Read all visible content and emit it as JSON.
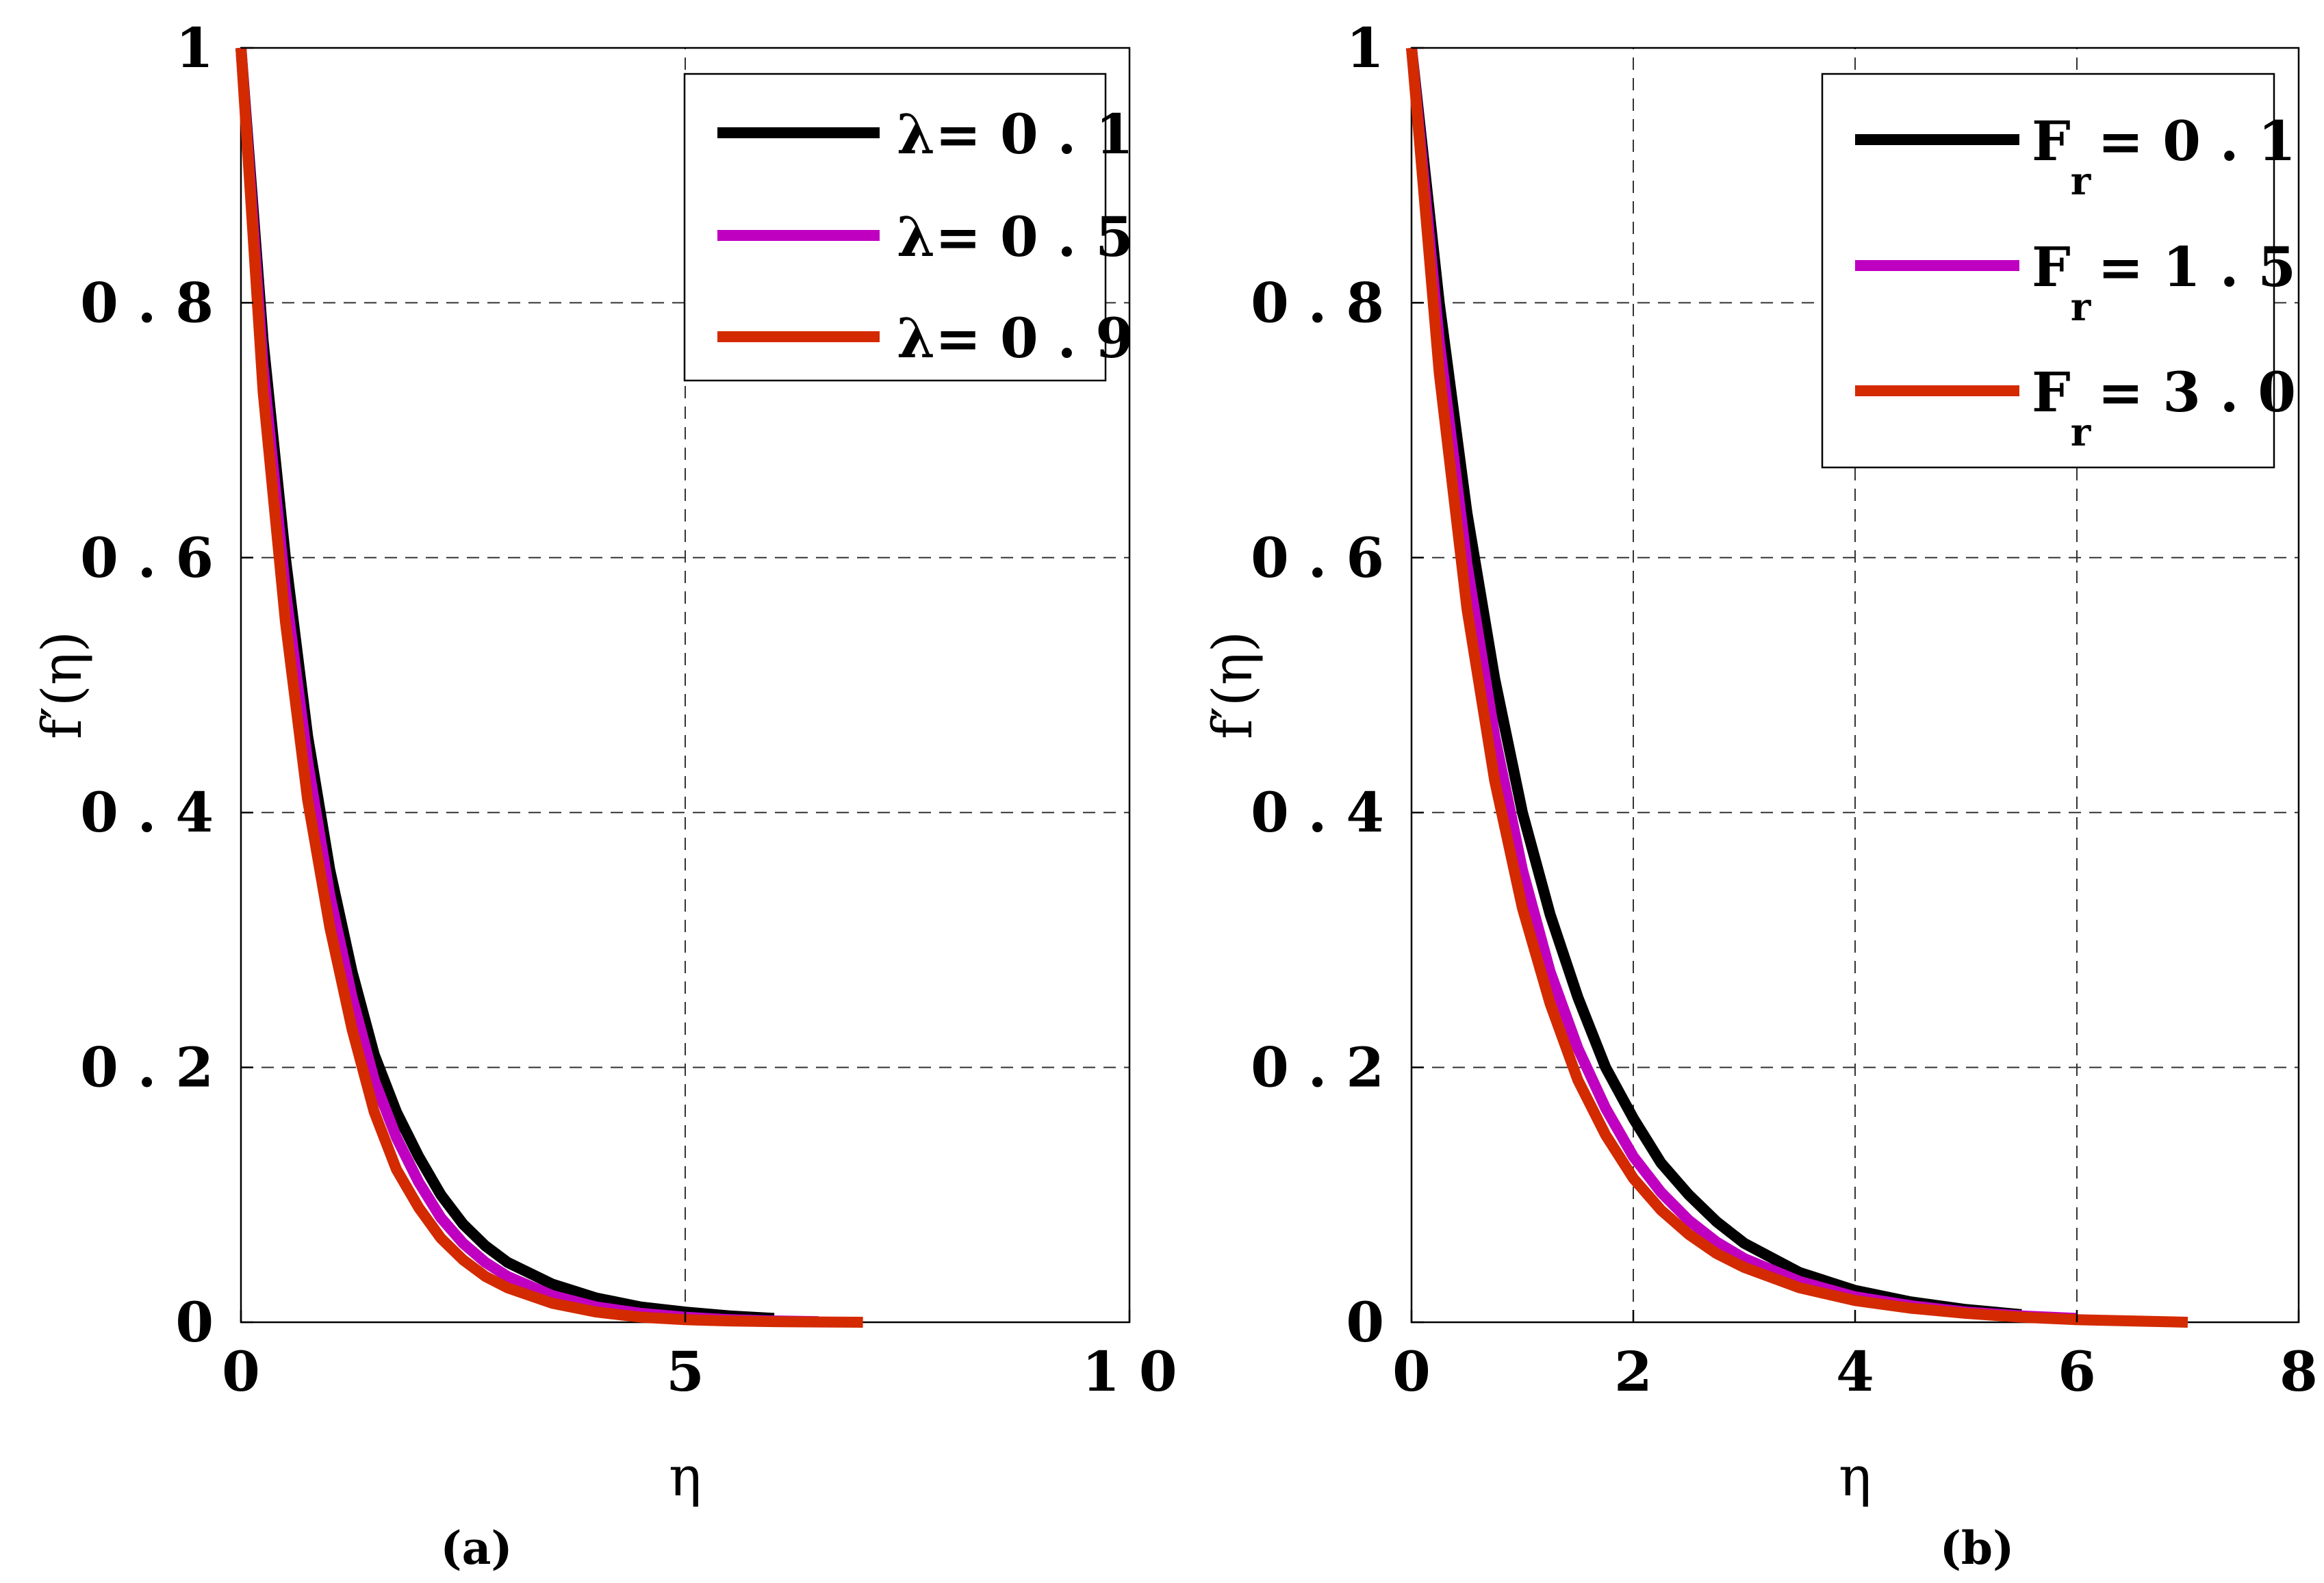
{
  "colors": {
    "series1": "#000000",
    "series2": "#c000c0",
    "series3": "#d42a00",
    "axis": "#000000",
    "grid": "#333333"
  },
  "chart_data": [
    {
      "type": "line",
      "panel_label": "(a)",
      "xlabel": "η",
      "ylabel": "f′(η)",
      "xlim": [
        0,
        10
      ],
      "ylim": [
        0,
        1
      ],
      "xticks": [
        0,
        5,
        10
      ],
      "xtick_labels": [
        "0",
        "5",
        "1 0"
      ],
      "yticks": [
        0,
        0.2,
        0.4,
        0.6,
        0.8,
        1
      ],
      "ytick_labels": [
        "0",
        "0 . 2",
        "0 . 4",
        "0 . 6",
        "0 . 8",
        "1"
      ],
      "grid": true,
      "legend_position": "top-right",
      "series": [
        {
          "name": "λ= 0 . 1",
          "legend": {
            "main": "λ= 0 . 1",
            "sub": ""
          },
          "x": [
            0,
            0.25,
            0.5,
            0.75,
            1.0,
            1.25,
            1.5,
            1.75,
            2.0,
            2.25,
            2.5,
            2.75,
            3.0,
            3.5,
            4.0,
            4.5,
            5.0,
            5.5,
            6.0
          ],
          "y": [
            1,
            0.77,
            0.6,
            0.46,
            0.355,
            0.275,
            0.21,
            0.165,
            0.13,
            0.1,
            0.077,
            0.06,
            0.047,
            0.03,
            0.019,
            0.012,
            0.008,
            0.005,
            0.003
          ]
        },
        {
          "name": "λ= 0 . 5",
          "legend": {
            "main": "λ= 0 . 5",
            "sub": ""
          },
          "x": [
            0,
            0.25,
            0.5,
            0.75,
            1.0,
            1.25,
            1.5,
            1.75,
            2.0,
            2.25,
            2.5,
            2.75,
            3.0,
            3.5,
            4.0,
            4.5,
            5.0,
            5.5,
            6.0,
            6.5
          ],
          "y": [
            1,
            0.75,
            0.575,
            0.44,
            0.335,
            0.255,
            0.19,
            0.145,
            0.11,
            0.082,
            0.062,
            0.047,
            0.036,
            0.021,
            0.012,
            0.007,
            0.004,
            0.002,
            0.001,
            0.0005
          ]
        },
        {
          "name": "λ= 0 . 9",
          "legend": {
            "main": "λ= 0 . 9",
            "sub": ""
          },
          "x": [
            0,
            0.25,
            0.5,
            0.75,
            1.0,
            1.25,
            1.5,
            1.75,
            2.0,
            2.25,
            2.5,
            2.75,
            3.0,
            3.5,
            4.0,
            4.5,
            5.0,
            5.5,
            6.0,
            6.5,
            7.0
          ],
          "y": [
            1,
            0.73,
            0.55,
            0.41,
            0.31,
            0.23,
            0.165,
            0.12,
            0.09,
            0.066,
            0.049,
            0.036,
            0.027,
            0.015,
            0.008,
            0.004,
            0.002,
            0.001,
            0.0005,
            0.0002,
            0
          ]
        }
      ]
    },
    {
      "type": "line",
      "panel_label": "(b)",
      "xlabel": "η",
      "ylabel": "f′(η)",
      "xlim": [
        0,
        8
      ],
      "ylim": [
        0,
        1
      ],
      "xticks": [
        0,
        2,
        4,
        6,
        8
      ],
      "xtick_labels": [
        "0",
        "2",
        "4",
        "6",
        "8"
      ],
      "yticks": [
        0,
        0.2,
        0.4,
        0.6,
        0.8,
        1
      ],
      "ytick_labels": [
        "0",
        "0 . 2",
        "0 . 4",
        "0 . 6",
        "0 . 8",
        "1"
      ],
      "grid": true,
      "legend_position": "top-right",
      "series": [
        {
          "name": "Fr = 0 . 1",
          "legend": {
            "main": "F",
            "sub": "r",
            "rest": "= 0 . 1"
          },
          "x": [
            0,
            0.25,
            0.5,
            0.75,
            1.0,
            1.25,
            1.5,
            1.75,
            2.0,
            2.25,
            2.5,
            2.75,
            3.0,
            3.5,
            4.0,
            4.5,
            5.0,
            5.5
          ],
          "y": [
            1,
            0.8,
            0.635,
            0.505,
            0.4,
            0.32,
            0.255,
            0.2,
            0.16,
            0.125,
            0.1,
            0.079,
            0.062,
            0.039,
            0.025,
            0.016,
            0.01,
            0.006
          ]
        },
        {
          "name": "Fr = 1 . 5",
          "legend": {
            "main": "F",
            "sub": "r",
            "rest": "= 1 . 5"
          },
          "x": [
            0,
            0.25,
            0.5,
            0.75,
            1.0,
            1.25,
            1.5,
            1.75,
            2.0,
            2.25,
            2.5,
            2.75,
            3.0,
            3.5,
            4.0,
            4.5,
            5.0,
            5.5,
            6.0
          ],
          "y": [
            1,
            0.77,
            0.595,
            0.46,
            0.355,
            0.275,
            0.215,
            0.168,
            0.13,
            0.102,
            0.08,
            0.063,
            0.05,
            0.032,
            0.02,
            0.013,
            0.008,
            0.005,
            0.003
          ]
        },
        {
          "name": "Fr = 3 . 0",
          "legend": {
            "main": "F",
            "sub": "r",
            "rest": "= 3 . 0"
          },
          "x": [
            0,
            0.25,
            0.5,
            0.75,
            1.0,
            1.25,
            1.5,
            1.75,
            2.0,
            2.25,
            2.5,
            2.75,
            3.0,
            3.5,
            4.0,
            4.5,
            5.0,
            5.5,
            6.0,
            6.5,
            7.0
          ],
          "y": [
            1,
            0.745,
            0.56,
            0.425,
            0.325,
            0.25,
            0.19,
            0.147,
            0.113,
            0.088,
            0.069,
            0.054,
            0.043,
            0.027,
            0.017,
            0.011,
            0.007,
            0.004,
            0.002,
            0.001,
            0
          ]
        }
      ]
    }
  ]
}
